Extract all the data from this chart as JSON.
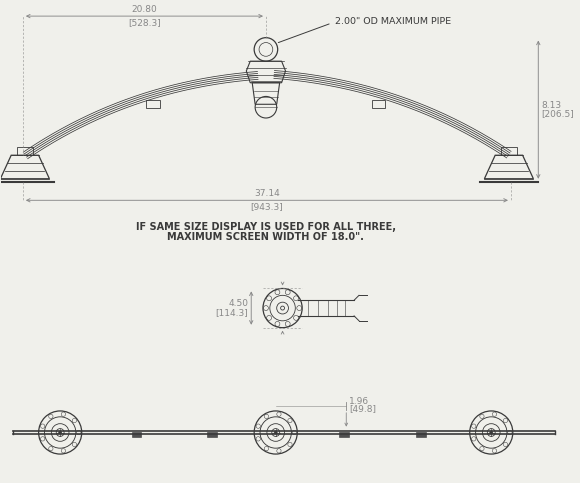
{
  "bg_color": "#f0f0eb",
  "line_color": "#3a3a3a",
  "dim_color": "#888888",
  "text_color": "#3a3a3a",
  "dim1_label": "20.80",
  "dim1_sub": "[528.3]",
  "dim2_label": "37.14",
  "dim2_sub": "[943.3]",
  "dim3_label": "8.13",
  "dim3_sub": "[206.5]",
  "dim4_label": "4.50",
  "dim4_sub": "[114.3]",
  "dim5_label": "1.96",
  "dim5_sub": "[49.8]",
  "pipe_label": "2.00\" OD MAXIMUM PIPE",
  "note_line1": "IF SAME SIZE DISPLAY IS USED FOR ALL THREE,",
  "note_line2": "MAXIMUM SCREEN WIDTH OF 18.0\".",
  "lc": "#3a3a3a",
  "dc": "#888888",
  "fig_w": 5.8,
  "fig_h": 4.83,
  "dpi": 100
}
